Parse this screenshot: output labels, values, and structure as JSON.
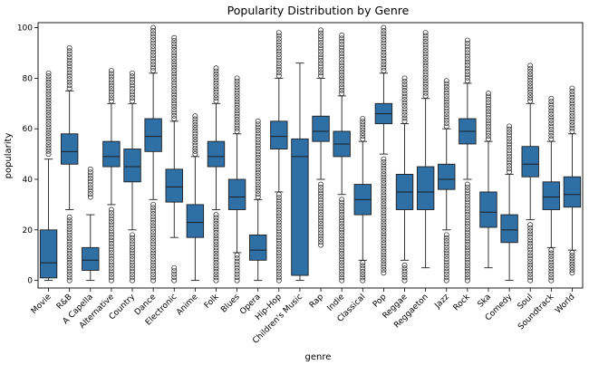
{
  "chart_data": {
    "type": "box",
    "title": "Popularity Distribution by Genre",
    "xlabel": "genre",
    "ylabel": "popularity",
    "ylim": [
      -3,
      102
    ],
    "yticks": [
      0,
      20,
      40,
      60,
      80,
      100
    ],
    "box_color": "#2e6fa6",
    "grid": false,
    "series": [
      {
        "name": "Movie",
        "whisker_low": 0,
        "q1": 1,
        "median": 7,
        "q3": 20,
        "whisker_high": 48,
        "fliers": [
          [
            50,
            82
          ]
        ]
      },
      {
        "name": "R&B",
        "whisker_low": 28,
        "q1": 46,
        "median": 51,
        "q3": 58,
        "whisker_high": 75,
        "fliers": [
          [
            0,
            25
          ],
          [
            76,
            92
          ]
        ]
      },
      {
        "name": "A Capella",
        "whisker_low": 0,
        "q1": 4,
        "median": 8,
        "q3": 13,
        "whisker_high": 26,
        "fliers": [
          [
            33,
            44
          ]
        ]
      },
      {
        "name": "Alternative",
        "whisker_low": 30,
        "q1": 45,
        "median": 49,
        "q3": 55,
        "whisker_high": 70,
        "fliers": [
          [
            0,
            28
          ],
          [
            71,
            83
          ]
        ]
      },
      {
        "name": "Country",
        "whisker_low": 20,
        "q1": 39,
        "median": 45,
        "q3": 52,
        "whisker_high": 70,
        "fliers": [
          [
            0,
            18
          ],
          [
            71,
            82
          ]
        ]
      },
      {
        "name": "Dance",
        "whisker_low": 32,
        "q1": 51,
        "median": 57,
        "q3": 64,
        "whisker_high": 82,
        "fliers": [
          [
            0,
            30
          ],
          [
            83,
            100
          ]
        ]
      },
      {
        "name": "Electronic",
        "whisker_low": 17,
        "q1": 31,
        "median": 37,
        "q3": 44,
        "whisker_high": 63,
        "fliers": [
          [
            0,
            5
          ],
          [
            64,
            96
          ]
        ]
      },
      {
        "name": "Anime",
        "whisker_low": 0,
        "q1": 17,
        "median": 23,
        "q3": 30,
        "whisker_high": 49,
        "fliers": [
          [
            50,
            65
          ]
        ]
      },
      {
        "name": "Folk",
        "whisker_low": 28,
        "q1": 45,
        "median": 49,
        "q3": 55,
        "whisker_high": 70,
        "fliers": [
          [
            0,
            26
          ],
          [
            71,
            84
          ]
        ]
      },
      {
        "name": "Blues",
        "whisker_low": 11,
        "q1": 28,
        "median": 33,
        "q3": 40,
        "whisker_high": 58,
        "fliers": [
          [
            0,
            10
          ],
          [
            59,
            80
          ]
        ]
      },
      {
        "name": "Opera",
        "whisker_low": 0,
        "q1": 8,
        "median": 12,
        "q3": 18,
        "whisker_high": 32,
        "fliers": [
          [
            33,
            63
          ]
        ]
      },
      {
        "name": "Hip-Hop",
        "whisker_low": 35,
        "q1": 52,
        "median": 57,
        "q3": 63,
        "whisker_high": 80,
        "fliers": [
          [
            0,
            34
          ],
          [
            81,
            98
          ]
        ]
      },
      {
        "name": "Children's Music",
        "whisker_low": 0,
        "q1": 2,
        "median": 49,
        "q3": 56,
        "whisker_high": 86,
        "fliers": []
      },
      {
        "name": "Rap",
        "whisker_low": 40,
        "q1": 55,
        "median": 59,
        "q3": 65,
        "whisker_high": 80,
        "fliers": [
          [
            14,
            38
          ],
          [
            81,
            99
          ]
        ]
      },
      {
        "name": "Indie",
        "whisker_low": 34,
        "q1": 49,
        "median": 54,
        "q3": 59,
        "whisker_high": 73,
        "fliers": [
          [
            0,
            32
          ],
          [
            74,
            97
          ]
        ]
      },
      {
        "name": "Classical",
        "whisker_low": 8,
        "q1": 26,
        "median": 32,
        "q3": 38,
        "whisker_high": 55,
        "fliers": [
          [
            0,
            7
          ],
          [
            56,
            64
          ]
        ]
      },
      {
        "name": "Pop",
        "whisker_low": 50,
        "q1": 62,
        "median": 66,
        "q3": 70,
        "whisker_high": 82,
        "fliers": [
          [
            3,
            48
          ],
          [
            83,
            100
          ]
        ]
      },
      {
        "name": "Reggae",
        "whisker_low": 8,
        "q1": 28,
        "median": 35,
        "q3": 42,
        "whisker_high": 62,
        "fliers": [
          [
            0,
            6
          ],
          [
            63,
            80
          ]
        ]
      },
      {
        "name": "Reggaeton",
        "whisker_low": 5,
        "q1": 28,
        "median": 35,
        "q3": 45,
        "whisker_high": 72,
        "fliers": [
          [
            73,
            98
          ]
        ]
      },
      {
        "name": "Jazz",
        "whisker_low": 20,
        "q1": 36,
        "median": 40,
        "q3": 46,
        "whisker_high": 60,
        "fliers": [
          [
            0,
            18
          ],
          [
            61,
            79
          ]
        ]
      },
      {
        "name": "Rock",
        "whisker_low": 40,
        "q1": 54,
        "median": 59,
        "q3": 64,
        "whisker_high": 78,
        "fliers": [
          [
            0,
            38
          ],
          [
            79,
            95
          ]
        ]
      },
      {
        "name": "Ska",
        "whisker_low": 5,
        "q1": 21,
        "median": 27,
        "q3": 35,
        "whisker_high": 55,
        "fliers": [
          [
            56,
            74
          ]
        ]
      },
      {
        "name": "Comedy",
        "whisker_low": 0,
        "q1": 15,
        "median": 20,
        "q3": 26,
        "whisker_high": 42,
        "fliers": [
          [
            43,
            61
          ]
        ]
      },
      {
        "name": "Soul",
        "whisker_low": 24,
        "q1": 41,
        "median": 46,
        "q3": 53,
        "whisker_high": 70,
        "fliers": [
          [
            0,
            22
          ],
          [
            71,
            85
          ]
        ]
      },
      {
        "name": "Soundtrack",
        "whisker_low": 13,
        "q1": 28,
        "median": 33,
        "q3": 39,
        "whisker_high": 55,
        "fliers": [
          [
            0,
            12
          ],
          [
            56,
            72
          ]
        ]
      },
      {
        "name": "World",
        "whisker_low": 12,
        "q1": 29,
        "median": 34,
        "q3": 41,
        "whisker_high": 58,
        "fliers": [
          [
            3,
            11
          ],
          [
            59,
            76
          ]
        ]
      }
    ]
  }
}
